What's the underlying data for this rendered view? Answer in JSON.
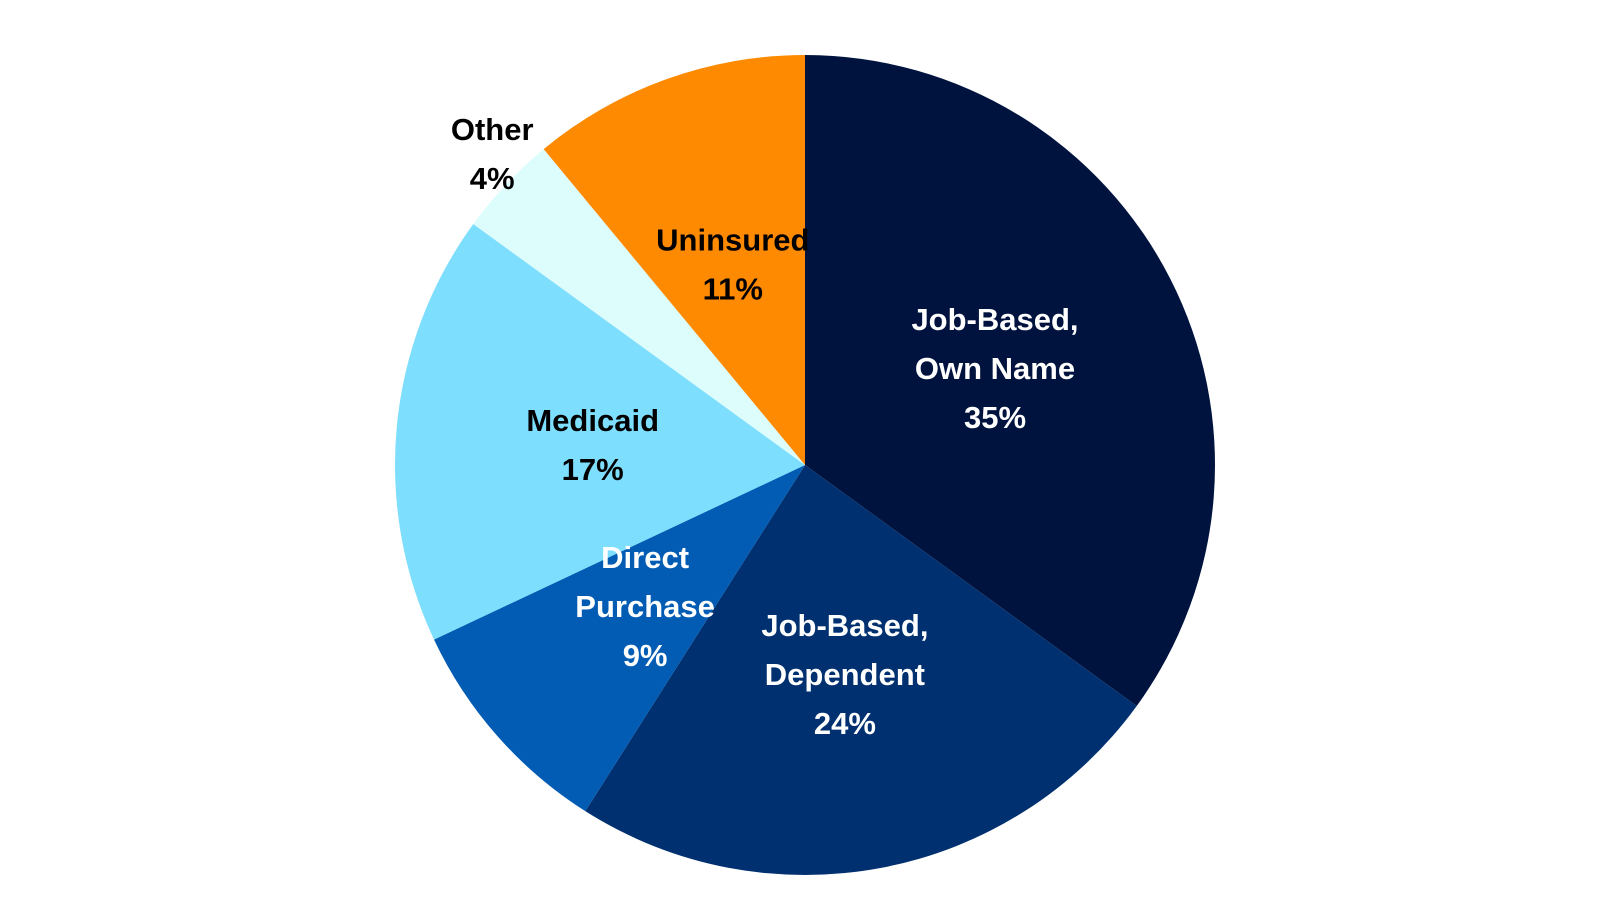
{
  "chart_data": {
    "type": "pie",
    "title": "",
    "start_angle_deg": 0,
    "direction": "clockwise",
    "slices": [
      {
        "label_lines": [
          "Job-Based,",
          "Own Name"
        ],
        "value": 35,
        "value_label": "35%",
        "color": "#00133f",
        "text_color": "#ffffff"
      },
      {
        "label_lines": [
          "Job-Based,",
          "Dependent"
        ],
        "value": 24,
        "value_label": "24%",
        "color": "#00306f",
        "text_color": "#ffffff"
      },
      {
        "label_lines": [
          "Direct",
          "Purchase"
        ],
        "value": 9,
        "value_label": "9%",
        "color": "#025cb4",
        "text_color": "#ffffff"
      },
      {
        "label_lines": [
          "Medicaid"
        ],
        "value": 17,
        "value_label": "17%",
        "color": "#7edefd",
        "text_color": "#000000"
      },
      {
        "label_lines": [
          "Other"
        ],
        "value": 4,
        "value_label": "4%",
        "color": "#ddfdfd",
        "text_color": "#000000",
        "label_outside": true
      },
      {
        "label_lines": [
          "Uninsured"
        ],
        "value": 11,
        "value_label": "11%",
        "color": "#fe8a02",
        "text_color": "#000000"
      }
    ]
  }
}
